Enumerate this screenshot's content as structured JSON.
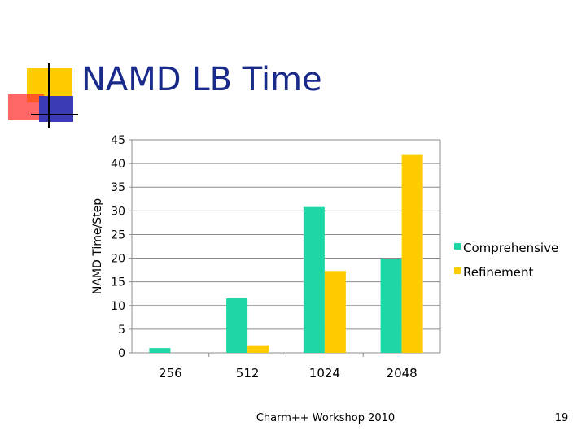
{
  "slide": {
    "title": "NAMD LB Time",
    "footer": "Charm++ Workshop 2010",
    "page_number": "19"
  },
  "colors": {
    "comprehensive": "#1fd6a6",
    "refinement": "#ffcc00",
    "deco_yellow": "#ffcc00",
    "deco_red": "#ff3333",
    "deco_blue": "#3b3bb3"
  },
  "chart_data": {
    "type": "bar",
    "title": "",
    "xlabel": "",
    "ylabel": "NAMD Time/Step",
    "categories": [
      "256",
      "512",
      "1024",
      "2048"
    ],
    "series": [
      {
        "name": "Comprehensive",
        "values": [
          1,
          11.5,
          30.8,
          19.9
        ]
      },
      {
        "name": "Refinement",
        "values": [
          0,
          1.6,
          17.3,
          41.8
        ]
      }
    ],
    "ylim": [
      0,
      45
    ],
    "yticks": [
      "0",
      "5",
      "10",
      "15",
      "20",
      "25",
      "30",
      "35",
      "40",
      "45"
    ],
    "grid": true,
    "legend": "right"
  }
}
